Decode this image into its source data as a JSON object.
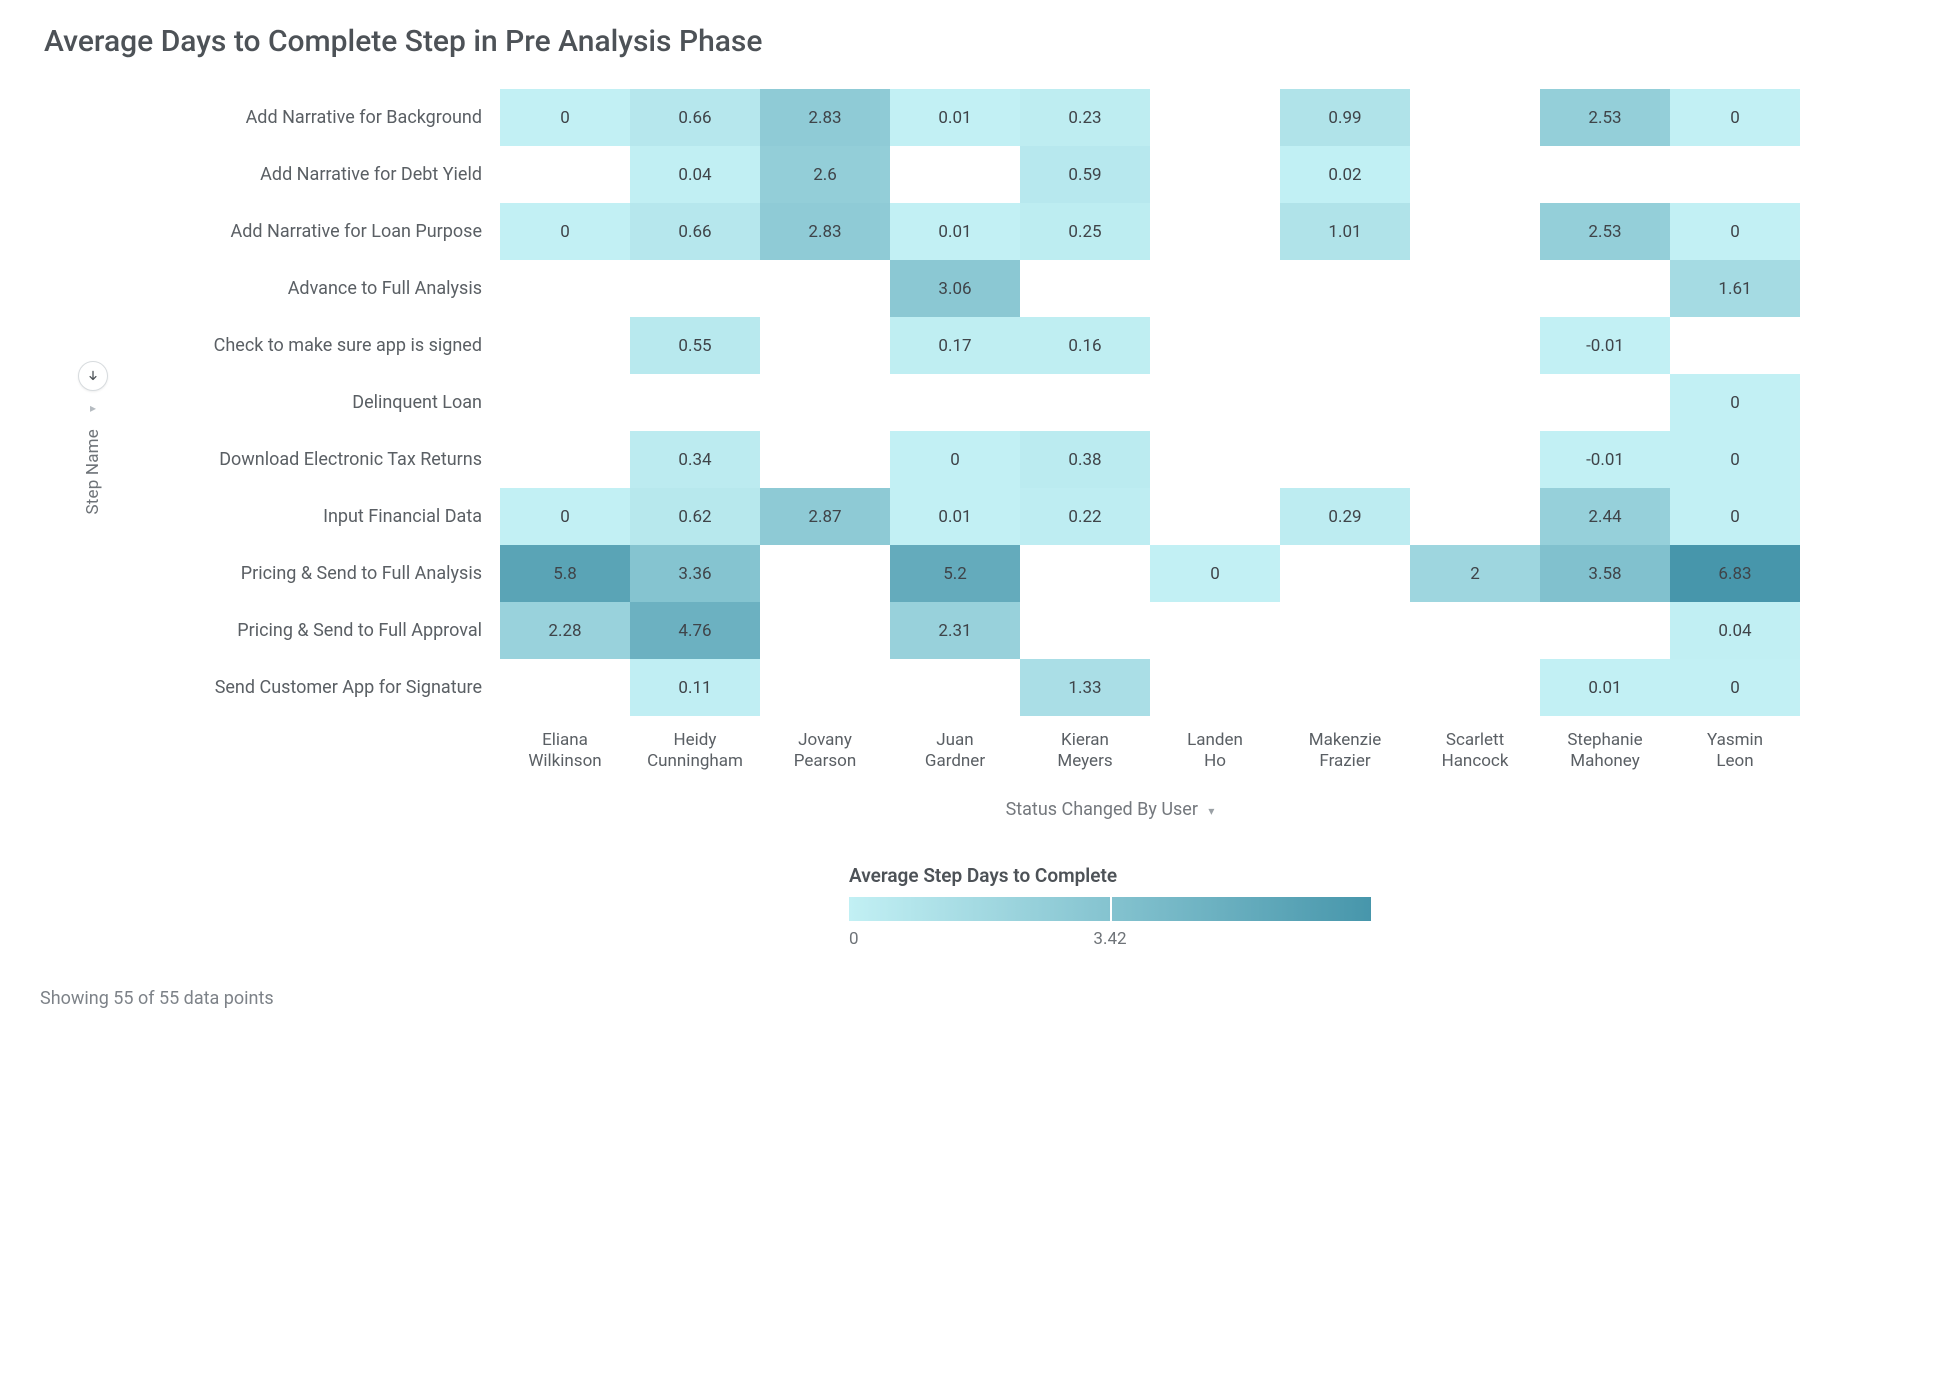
{
  "title": "Average Days to Complete Step in Pre Analysis Phase",
  "heatmap": {
    "type": "heatmap",
    "y_axis_label": "Step Name",
    "x_axis_label": "Status Changed By User",
    "columns": [
      "Eliana Wilkinson",
      "Heidy Cunningham",
      "Jovany Pearson",
      "Juan Gardner",
      "Kieran Meyers",
      "Landen Ho",
      "Makenzie Frazier",
      "Scarlett Hancock",
      "Stephanie Mahoney",
      "Yasmin Leon"
    ],
    "rows": [
      "Add Narrative for Background",
      "Add Narrative for Debt Yield",
      "Add Narrative for Loan Purpose",
      "Advance to Full Analysis",
      "Check to make sure app is signed",
      "Delinquent Loan",
      "Download Electronic Tax Returns",
      "Input Financial Data",
      "Pricing & Send to Full Analysis",
      "Pricing & Send to Full Approval",
      "Send Customer App for Signature"
    ],
    "values": [
      [
        0,
        0.66,
        2.83,
        0.01,
        0.23,
        null,
        0.99,
        null,
        2.53,
        0
      ],
      [
        null,
        0.04,
        2.6,
        null,
        0.59,
        null,
        0.02,
        null,
        null,
        null
      ],
      [
        0,
        0.66,
        2.83,
        0.01,
        0.25,
        null,
        1.01,
        null,
        2.53,
        0
      ],
      [
        null,
        null,
        null,
        3.06,
        null,
        null,
        null,
        null,
        null,
        1.61
      ],
      [
        null,
        0.55,
        null,
        0.17,
        0.16,
        null,
        null,
        null,
        -0.01,
        null
      ],
      [
        null,
        null,
        null,
        null,
        null,
        null,
        null,
        null,
        null,
        0
      ],
      [
        null,
        0.34,
        null,
        0,
        0.38,
        null,
        null,
        null,
        -0.01,
        0
      ],
      [
        0,
        0.62,
        2.87,
        0.01,
        0.22,
        null,
        0.29,
        null,
        2.44,
        0
      ],
      [
        5.8,
        3.36,
        null,
        5.2,
        null,
        0,
        null,
        2,
        3.58,
        6.83
      ],
      [
        2.28,
        4.76,
        null,
        2.31,
        null,
        null,
        null,
        null,
        null,
        0.04
      ],
      [
        null,
        0.11,
        null,
        null,
        1.33,
        null,
        null,
        null,
        0.01,
        0
      ]
    ],
    "color_scale": {
      "min": -0.01,
      "max": 6.83,
      "low_color": "#c2f0f4",
      "high_color": "#4796ab",
      "empty_color": "#ffffff"
    },
    "cell_text_color": "#3f4449",
    "label_fontsize": 18
  },
  "legend": {
    "title": "Average Step Days to Complete",
    "tick_min": "0",
    "tick_mid": "3.42",
    "gradient_low": "#c2f0f4",
    "gradient_high": "#4796ab",
    "bar_divider_color": "#ffffff"
  },
  "footer": "Showing 55 of 55 data points",
  "background_color": "#ffffff"
}
